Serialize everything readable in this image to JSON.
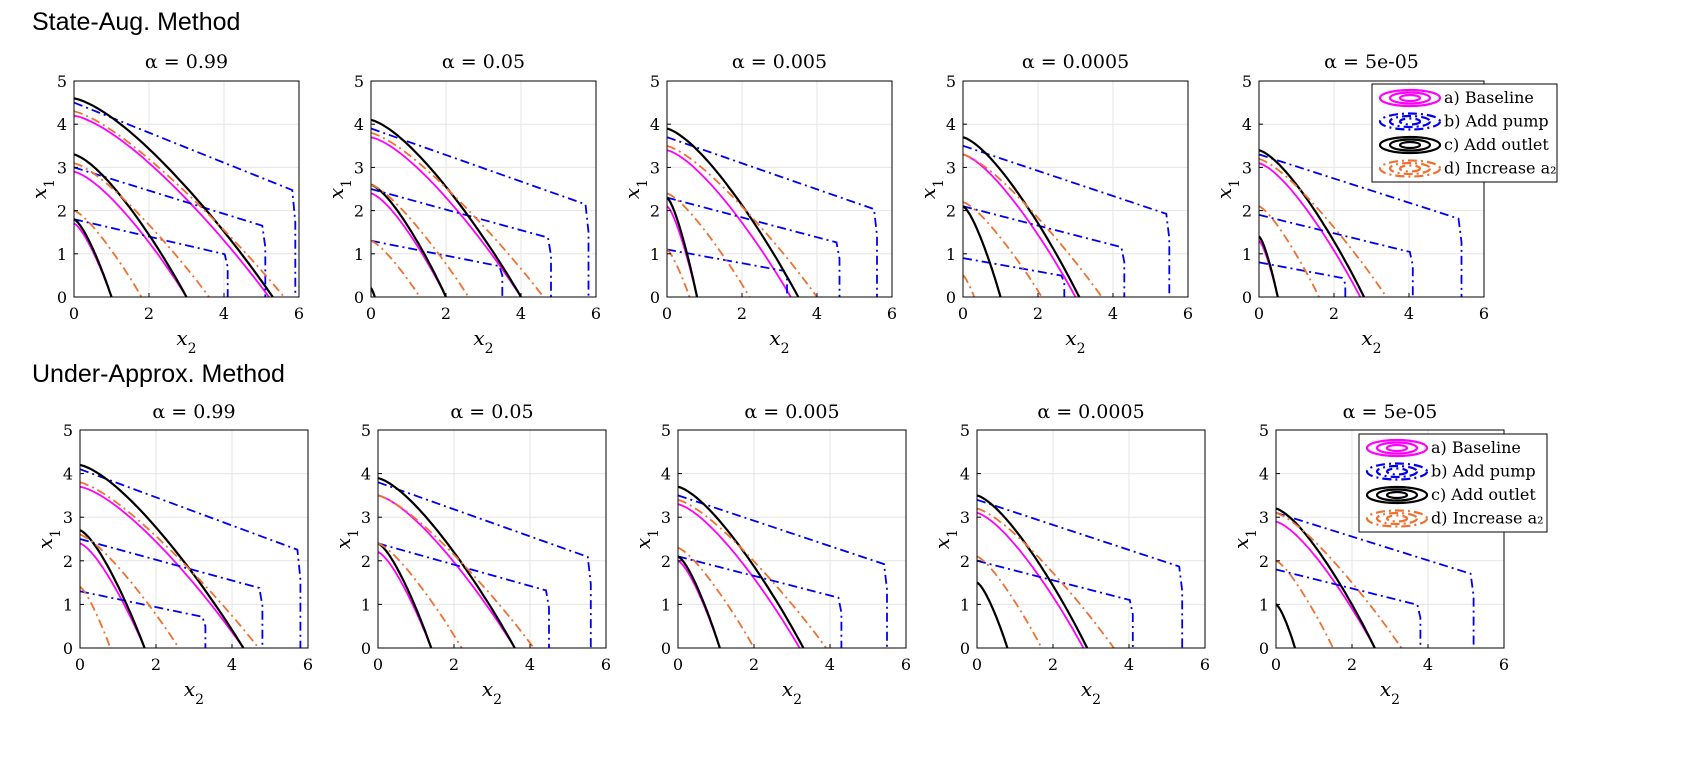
{
  "sections": [
    {
      "title": "State-Aug. Method"
    },
    {
      "title": "Under-Approx. Method"
    }
  ],
  "legend": {
    "entries": [
      {
        "label": "a) Baseline",
        "color": "#ff00ff",
        "style": "solid"
      },
      {
        "label": "b) Add pump",
        "color": "#0000ee",
        "style": "dashdot"
      },
      {
        "label": "c) Add outlet",
        "color": "#000000",
        "style": "solid"
      },
      {
        "label": "d) Increase a₂",
        "color": "#f07030",
        "style": "dashdot"
      }
    ]
  },
  "chart_data": [
    {
      "type": "line",
      "section": "State-Aug. Method",
      "title": "α = 0.99",
      "xlabel": "x2",
      "ylabel": "x1",
      "xlim": [
        0,
        6
      ],
      "ylim": [
        0,
        5
      ],
      "grid": true,
      "series": [
        {
          "name": "a) Baseline",
          "color": "#ff00ff",
          "curves": [
            {
              "x0": 1.0,
              "y0": 1.7
            },
            {
              "x0": 3.0,
              "y0": 2.9
            },
            {
              "x0": 5.2,
              "y0": 4.2
            }
          ]
        },
        {
          "name": "b) Add pump",
          "color": "#0000ee",
          "curves": [
            {
              "x0": 4.1,
              "y0": 1.8
            },
            {
              "x0": 5.1,
              "y0": 3.0
            },
            {
              "x0": 5.9,
              "y0": 4.5
            }
          ]
        },
        {
          "name": "c) Add outlet",
          "color": "#000000",
          "curves": [
            {
              "x0": 1.0,
              "y0": 1.8
            },
            {
              "x0": 3.0,
              "y0": 3.3
            },
            {
              "x0": 5.3,
              "y0": 4.6
            }
          ]
        },
        {
          "name": "d) Increase a2",
          "color": "#f07030",
          "curves": [
            {
              "x0": 1.8,
              "y0": 2.0
            },
            {
              "x0": 3.6,
              "y0": 3.1
            },
            {
              "x0": 5.6,
              "y0": 4.3
            }
          ]
        }
      ]
    },
    {
      "type": "line",
      "section": "State-Aug. Method",
      "title": "α = 0.05",
      "xlabel": "x2",
      "ylabel": "x1",
      "xlim": [
        0,
        6
      ],
      "ylim": [
        0,
        5
      ],
      "grid": true,
      "series": [
        {
          "name": "a) Baseline",
          "color": "#ff00ff",
          "curves": [
            {
              "x0": 0.1,
              "y0": 0.2
            },
            {
              "x0": 2.0,
              "y0": 2.4
            },
            {
              "x0": 4.0,
              "y0": 3.7
            }
          ]
        },
        {
          "name": "b) Add pump",
          "color": "#0000ee",
          "curves": [
            {
              "x0": 3.5,
              "y0": 1.3
            },
            {
              "x0": 4.8,
              "y0": 2.5
            },
            {
              "x0": 5.8,
              "y0": 3.9
            }
          ]
        },
        {
          "name": "c) Add outlet",
          "color": "#000000",
          "curves": [
            {
              "x0": 0.1,
              "y0": 0.2
            },
            {
              "x0": 2.0,
              "y0": 2.6
            },
            {
              "x0": 4.0,
              "y0": 4.1
            }
          ]
        },
        {
          "name": "d) Increase a2",
          "color": "#f07030",
          "curves": [
            {
              "x0": 1.3,
              "y0": 1.3
            },
            {
              "x0": 2.6,
              "y0": 2.6
            },
            {
              "x0": 4.6,
              "y0": 3.8
            }
          ]
        }
      ]
    },
    {
      "type": "line",
      "section": "State-Aug. Method",
      "title": "α = 0.005",
      "xlabel": "x2",
      "ylabel": "x1",
      "xlim": [
        0,
        6
      ],
      "ylim": [
        0,
        5
      ],
      "grid": true,
      "series": [
        {
          "name": "a) Baseline",
          "color": "#ff00ff",
          "curves": [
            {
              "x0": 0.8,
              "y0": 2.1
            },
            {
              "x0": 3.3,
              "y0": 3.4
            }
          ]
        },
        {
          "name": "b) Add pump",
          "color": "#0000ee",
          "curves": [
            {
              "x0": 3.2,
              "y0": 1.1
            },
            {
              "x0": 4.6,
              "y0": 2.3
            },
            {
              "x0": 5.6,
              "y0": 3.7
            }
          ]
        },
        {
          "name": "c) Add outlet",
          "color": "#000000",
          "curves": [
            {
              "x0": 0.8,
              "y0": 2.3
            },
            {
              "x0": 3.5,
              "y0": 3.9
            }
          ]
        },
        {
          "name": "d) Increase a2",
          "color": "#f07030",
          "curves": [
            {
              "x0": 0.6,
              "y0": 1.1
            },
            {
              "x0": 2.2,
              "y0": 2.4
            },
            {
              "x0": 4.0,
              "y0": 3.5
            }
          ]
        }
      ]
    },
    {
      "type": "line",
      "section": "State-Aug. Method",
      "title": "α = 0.0005",
      "xlabel": "x2",
      "ylabel": "x1",
      "xlim": [
        0,
        6
      ],
      "ylim": [
        0,
        5
      ],
      "grid": true,
      "series": [
        {
          "name": "a) Baseline",
          "color": "#ff00ff",
          "curves": [
            {
              "x0": 1.0,
              "y0": 2.1
            },
            {
              "x0": 3.0,
              "y0": 3.3
            }
          ]
        },
        {
          "name": "b) Add pump",
          "color": "#0000ee",
          "curves": [
            {
              "x0": 2.7,
              "y0": 0.9
            },
            {
              "x0": 4.3,
              "y0": 2.1
            },
            {
              "x0": 5.5,
              "y0": 3.5
            }
          ]
        },
        {
          "name": "c) Add outlet",
          "color": "#000000",
          "curves": [
            {
              "x0": 1.0,
              "y0": 2.1
            },
            {
              "x0": 3.1,
              "y0": 3.7
            }
          ]
        },
        {
          "name": "d) Increase a2",
          "color": "#f07030",
          "curves": [
            {
              "x0": 0.3,
              "y0": 0.5
            },
            {
              "x0": 2.1,
              "y0": 2.2
            },
            {
              "x0": 3.7,
              "y0": 3.3
            }
          ]
        }
      ]
    },
    {
      "type": "line",
      "section": "State-Aug. Method",
      "title": "α = 5e-05",
      "xlabel": "x2",
      "ylabel": "x1",
      "xlim": [
        0,
        6
      ],
      "ylim": [
        0,
        5
      ],
      "grid": true,
      "legend": "top-right",
      "series": [
        {
          "name": "a) Baseline",
          "color": "#ff00ff",
          "curves": [
            {
              "x0": 0.5,
              "y0": 1.3
            },
            {
              "x0": 2.7,
              "y0": 3.1
            }
          ]
        },
        {
          "name": "b) Add pump",
          "color": "#0000ee",
          "curves": [
            {
              "x0": 2.3,
              "y0": 0.8
            },
            {
              "x0": 4.1,
              "y0": 1.9
            },
            {
              "x0": 5.4,
              "y0": 3.3
            }
          ]
        },
        {
          "name": "c) Add outlet",
          "color": "#000000",
          "curves": [
            {
              "x0": 0.5,
              "y0": 1.4
            },
            {
              "x0": 2.8,
              "y0": 3.4
            }
          ]
        },
        {
          "name": "d) Increase a2",
          "color": "#f07030",
          "curves": [
            {
              "x0": 1.6,
              "y0": 2.1
            },
            {
              "x0": 3.4,
              "y0": 3.2
            }
          ]
        }
      ]
    },
    {
      "type": "line",
      "section": "Under-Approx. Method",
      "title": "α = 0.99",
      "xlabel": "x2",
      "ylabel": "x1",
      "xlim": [
        0,
        6
      ],
      "ylim": [
        0,
        5
      ],
      "grid": true,
      "series": [
        {
          "name": "a) Baseline",
          "color": "#ff00ff",
          "curves": [
            {
              "x0": 1.7,
              "y0": 2.4
            },
            {
              "x0": 4.3,
              "y0": 3.7
            }
          ]
        },
        {
          "name": "b) Add pump",
          "color": "#0000ee",
          "curves": [
            {
              "x0": 3.3,
              "y0": 1.3
            },
            {
              "x0": 4.8,
              "y0": 2.5
            },
            {
              "x0": 5.8,
              "y0": 4.1
            }
          ]
        },
        {
          "name": "c) Add outlet",
          "color": "#000000",
          "curves": [
            {
              "x0": 1.7,
              "y0": 2.7
            },
            {
              "x0": 4.3,
              "y0": 4.2
            }
          ]
        },
        {
          "name": "d) Increase a2",
          "color": "#f07030",
          "curves": [
            {
              "x0": 0.8,
              "y0": 1.4
            },
            {
              "x0": 2.6,
              "y0": 2.6
            },
            {
              "x0": 4.7,
              "y0": 3.8
            }
          ]
        }
      ]
    },
    {
      "type": "line",
      "section": "Under-Approx. Method",
      "title": "α = 0.05",
      "xlabel": "x2",
      "ylabel": "x1",
      "xlim": [
        0,
        6
      ],
      "ylim": [
        0,
        5
      ],
      "grid": true,
      "series": [
        {
          "name": "a) Baseline",
          "color": "#ff00ff",
          "curves": [
            {
              "x0": 1.4,
              "y0": 2.2
            },
            {
              "x0": 3.6,
              "y0": 3.5
            }
          ]
        },
        {
          "name": "b) Add pump",
          "color": "#0000ee",
          "curves": [
            {
              "x0": 4.5,
              "y0": 2.4
            },
            {
              "x0": 5.6,
              "y0": 3.8
            }
          ]
        },
        {
          "name": "c) Add outlet",
          "color": "#000000",
          "curves": [
            {
              "x0": 1.4,
              "y0": 2.4
            },
            {
              "x0": 3.6,
              "y0": 3.9
            }
          ]
        },
        {
          "name": "d) Increase a2",
          "color": "#f07030",
          "curves": [
            {
              "x0": 2.2,
              "y0": 2.4
            },
            {
              "x0": 4.1,
              "y0": 3.5
            }
          ]
        }
      ]
    },
    {
      "type": "line",
      "section": "Under-Approx. Method",
      "title": "α = 0.005",
      "xlabel": "x2",
      "ylabel": "x1",
      "xlim": [
        0,
        6
      ],
      "ylim": [
        0,
        5
      ],
      "grid": true,
      "series": [
        {
          "name": "a) Baseline",
          "color": "#ff00ff",
          "curves": [
            {
              "x0": 1.1,
              "y0": 2.0
            },
            {
              "x0": 3.2,
              "y0": 3.3
            }
          ]
        },
        {
          "name": "b) Add pump",
          "color": "#0000ee",
          "curves": [
            {
              "x0": 4.3,
              "y0": 2.1
            },
            {
              "x0": 5.5,
              "y0": 3.5
            }
          ]
        },
        {
          "name": "c) Add outlet",
          "color": "#000000",
          "curves": [
            {
              "x0": 1.1,
              "y0": 2.1
            },
            {
              "x0": 3.3,
              "y0": 3.7
            }
          ]
        },
        {
          "name": "d) Increase a2",
          "color": "#f07030",
          "curves": [
            {
              "x0": 2.0,
              "y0": 2.3
            },
            {
              "x0": 3.9,
              "y0": 3.4
            }
          ]
        }
      ]
    },
    {
      "type": "line",
      "section": "Under-Approx. Method",
      "title": "α = 0.0005",
      "xlabel": "x2",
      "ylabel": "x1",
      "xlim": [
        0,
        6
      ],
      "ylim": [
        0,
        5
      ],
      "grid": true,
      "series": [
        {
          "name": "a) Baseline",
          "color": "#ff00ff",
          "curves": [
            {
              "x0": 0.8,
              "y0": 1.5
            },
            {
              "x0": 2.8,
              "y0": 3.1
            }
          ]
        },
        {
          "name": "b) Add pump",
          "color": "#0000ee",
          "curves": [
            {
              "x0": 4.1,
              "y0": 2.0
            },
            {
              "x0": 5.4,
              "y0": 3.4
            }
          ]
        },
        {
          "name": "c) Add outlet",
          "color": "#000000",
          "curves": [
            {
              "x0": 0.8,
              "y0": 1.5
            },
            {
              "x0": 2.9,
              "y0": 3.5
            }
          ]
        },
        {
          "name": "d) Increase a2",
          "color": "#f07030",
          "curves": [
            {
              "x0": 1.7,
              "y0": 2.1
            },
            {
              "x0": 3.6,
              "y0": 3.2
            }
          ]
        }
      ]
    },
    {
      "type": "line",
      "section": "Under-Approx. Method",
      "title": "α = 5e-05",
      "xlabel": "x2",
      "ylabel": "x1",
      "xlim": [
        0,
        6
      ],
      "ylim": [
        0,
        5
      ],
      "grid": true,
      "legend": "top-right",
      "series": [
        {
          "name": "a) Baseline",
          "color": "#ff00ff",
          "curves": [
            {
              "x0": 0.5,
              "y0": 1.0
            },
            {
              "x0": 2.6,
              "y0": 2.9
            }
          ]
        },
        {
          "name": "b) Add pump",
          "color": "#0000ee",
          "curves": [
            {
              "x0": 3.8,
              "y0": 1.8
            },
            {
              "x0": 5.2,
              "y0": 3.1
            }
          ]
        },
        {
          "name": "c) Add outlet",
          "color": "#000000",
          "curves": [
            {
              "x0": 0.5,
              "y0": 1.0
            },
            {
              "x0": 2.6,
              "y0": 3.2
            }
          ]
        },
        {
          "name": "d) Increase a2",
          "color": "#f07030",
          "curves": [
            {
              "x0": 1.5,
              "y0": 2.0
            },
            {
              "x0": 3.3,
              "y0": 3.1
            }
          ]
        }
      ]
    }
  ]
}
